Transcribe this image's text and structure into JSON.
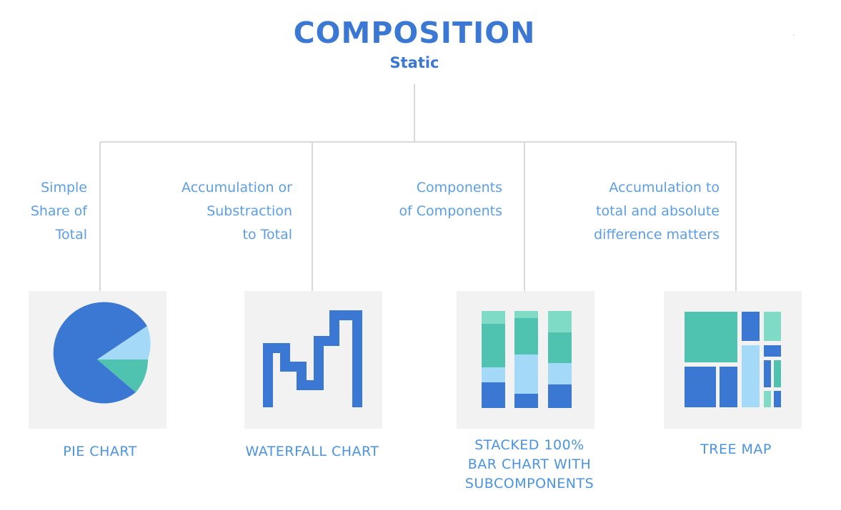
{
  "header": {
    "title": "COMPOSITION",
    "subtitle": "Static"
  },
  "categories": [
    {
      "description": [
        "Simple",
        "Share of",
        "Total"
      ],
      "chart_label": [
        "PIE CHART"
      ],
      "icon": "pie-chart-icon"
    },
    {
      "description": [
        "Accumulation or",
        "Substraction",
        "to Total"
      ],
      "chart_label": [
        "WATERFALL CHART"
      ],
      "icon": "waterfall-chart-icon"
    },
    {
      "description": [
        "Components",
        "of Components"
      ],
      "chart_label": [
        "STACKED 100%",
        "BAR CHART WITH",
        "SUBCOMPONENTS"
      ],
      "icon": "stacked-bar-chart-icon"
    },
    {
      "description": [
        "Accumulation to",
        "total and absolute",
        "difference matters"
      ],
      "chart_label": [
        "TREE MAP"
      ],
      "icon": "tree-map-icon"
    }
  ],
  "colors": {
    "title": "#3b78d4",
    "description_text": "#5b9ee6",
    "label_text": "#4a93e2",
    "connector": "#d9d9d9",
    "tile_background": "#f2f2f2",
    "dark_blue": "#3b78d4",
    "light_blue": "#a4daf8",
    "teal": "#4fc3b0",
    "light_teal": "#7fdac6"
  }
}
